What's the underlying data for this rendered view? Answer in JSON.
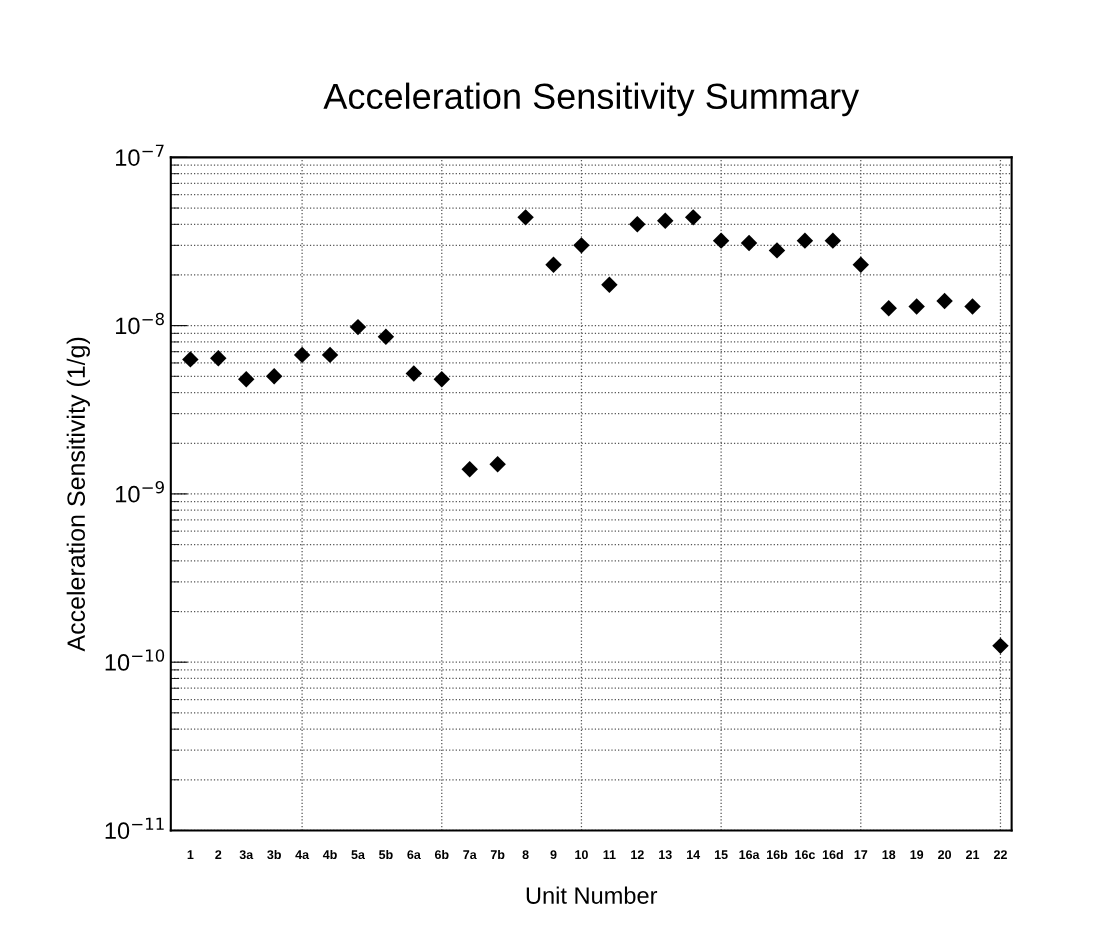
{
  "chart_data": {
    "type": "scatter",
    "title": "Acceleration Sensitivity Summary",
    "xlabel": "Unit Number",
    "ylabel": "Acceleration Sensitivity (1/g)",
    "categories": [
      "1",
      "2",
      "3a",
      "3b",
      "4a",
      "4b",
      "5a",
      "5b",
      "6a",
      "6b",
      "7a",
      "7b",
      "8",
      "9",
      "10",
      "11",
      "12",
      "13",
      "14",
      "15",
      "16a",
      "16b",
      "16c",
      "16d",
      "17",
      "18",
      "19",
      "20",
      "21",
      "22"
    ],
    "series": [
      {
        "color": "#000000",
        "values": [
          6.3e-09,
          6.4e-09,
          4.8e-09,
          5e-09,
          6.7e-09,
          6.7e-09,
          9.8e-09,
          8.6e-09,
          5.2e-09,
          4.8e-09,
          1.4e-09,
          1.5e-09,
          4.4e-08,
          2.3e-08,
          3e-08,
          1.75e-08,
          4e-08,
          4.2e-08,
          4.4e-08,
          3.2e-08,
          3.1e-08,
          2.8e-08,
          3.2e-08,
          3.2e-08,
          2.3e-08,
          1.27e-08,
          1.3e-08,
          1.4e-08,
          1.3e-08,
          1.25e-10
        ]
      }
    ],
    "log": "y",
    "ylim": [
      1e-11,
      1e-07
    ],
    "yticks": [
      {
        "value": 1e-11,
        "label": "10$^{−11}$"
      },
      {
        "value": 1e-10,
        "label": "10$^{−10}$"
      },
      {
        "value": 1e-09,
        "label": "10$^{−9}$"
      },
      {
        "value": 1e-08,
        "label": "10$^{−8}$"
      },
      {
        "value": 1e-07,
        "label": "10$^{−7}$"
      }
    ],
    "grid": true,
    "marker": "diamond",
    "legend": false
  }
}
